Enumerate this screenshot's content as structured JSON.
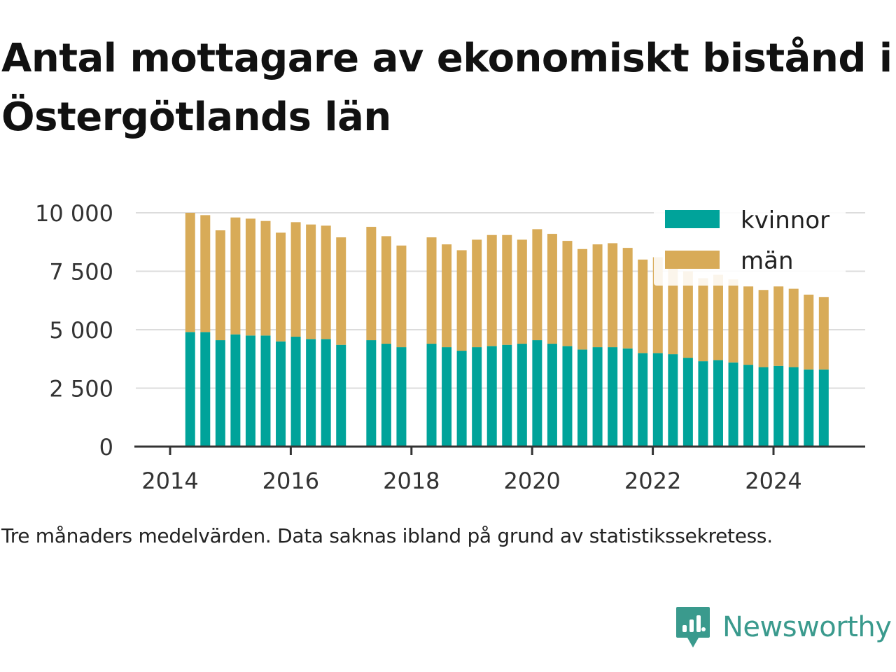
{
  "title": "Antal mottagare av ekonomiskt bistånd i Östergötlands län",
  "caption": "Tre månaders medelvärden. Data saknas ibland på grund av statistikssekretess.",
  "brand": {
    "name": "Newsworthy",
    "icon": "newsworthy-logo-icon",
    "color": "#3a9a8d"
  },
  "chart_data": {
    "type": "bar",
    "stacked": true,
    "x_label_ticks": [
      "2014",
      "2016",
      "2018",
      "2020",
      "2022",
      "2024"
    ],
    "y_ticks": [
      "0",
      "2 500",
      "5 000",
      "7 500",
      "10 000"
    ],
    "ylim": [
      0,
      10000
    ],
    "grid": true,
    "legend_position": "top-right",
    "x": [
      "2014-05",
      "2014-08",
      "2014-11",
      "2015-02",
      "2015-05",
      "2015-08",
      "2015-11",
      "2016-02",
      "2016-05",
      "2016-08",
      "2016-11",
      "2017-02",
      "2017-05",
      "2017-08",
      "2017-11",
      "2018-02",
      "2018-05",
      "2018-08",
      "2018-11",
      "2019-02",
      "2019-05",
      "2019-08",
      "2019-11",
      "2020-02",
      "2020-05",
      "2020-08",
      "2020-11",
      "2021-02",
      "2021-05",
      "2021-08",
      "2021-11",
      "2022-02",
      "2022-05",
      "2022-08",
      "2022-11",
      "2023-02",
      "2023-05",
      "2023-08",
      "2023-11",
      "2024-02",
      "2024-05",
      "2024-08",
      "2024-11"
    ],
    "series": [
      {
        "name": "kvinnor",
        "color": "#00a39a",
        "values": [
          4900,
          4900,
          4550,
          4800,
          4750,
          4750,
          4500,
          4700,
          4600,
          4600,
          4350,
          null,
          4550,
          4400,
          4250,
          null,
          4400,
          4250,
          4100,
          4250,
          4300,
          4350,
          4400,
          4550,
          4400,
          4300,
          4150,
          4250,
          4250,
          4200,
          4000,
          4000,
          3950,
          3800,
          3650,
          3700,
          3600,
          3500,
          3400,
          3450,
          3400,
          3300,
          3300
        ]
      },
      {
        "name": "män",
        "color": "#d8ab58",
        "values": [
          5100,
          5000,
          4700,
          5000,
          5000,
          4900,
          4650,
          4900,
          4900,
          4850,
          4600,
          null,
          4850,
          4600,
          4350,
          null,
          4550,
          4400,
          4300,
          4600,
          4750,
          4700,
          4450,
          4750,
          4700,
          4500,
          4300,
          4400,
          4450,
          4300,
          4000,
          4100,
          3900,
          3700,
          3550,
          3650,
          3550,
          3350,
          3300,
          3400,
          3350,
          3200,
          3100
        ]
      }
    ]
  }
}
